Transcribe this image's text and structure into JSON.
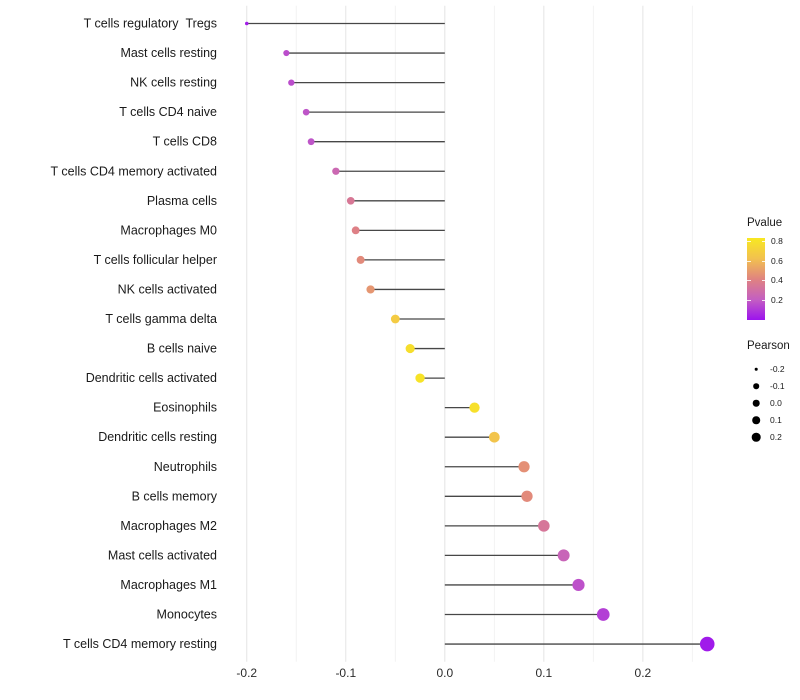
{
  "chart_data": {
    "type": "lollipop",
    "title": "",
    "xlabel": "",
    "ylabel": "",
    "x_tick_labels": [
      "-0.2",
      "-0.1",
      "0.0",
      "0.1",
      "0.2"
    ],
    "x_tick_values": [
      -0.2,
      -0.1,
      0.0,
      0.1,
      0.2
    ],
    "x_minor_tick_values": [
      -0.15,
      -0.05,
      0.05,
      0.15,
      0.25
    ],
    "x_range": [
      -0.225,
      0.289
    ],
    "grid": "on",
    "rows": [
      {
        "label": "T cells regulatory  Tregs",
        "pearson": -0.2,
        "pvalue": 0.03
      },
      {
        "label": "Mast cells resting",
        "pearson": -0.16,
        "pvalue": 0.16
      },
      {
        "label": "NK cells resting",
        "pearson": -0.155,
        "pvalue": 0.16
      },
      {
        "label": "T cells CD4 naive",
        "pearson": -0.14,
        "pvalue": 0.18
      },
      {
        "label": "T cells CD8",
        "pearson": -0.135,
        "pvalue": 0.18
      },
      {
        "label": "T cells CD4 memory activated",
        "pearson": -0.11,
        "pvalue": 0.26
      },
      {
        "label": "Plasma cells",
        "pearson": -0.095,
        "pvalue": 0.35
      },
      {
        "label": "Macrophages M0",
        "pearson": -0.09,
        "pvalue": 0.4
      },
      {
        "label": "T cells follicular helper",
        "pearson": -0.085,
        "pvalue": 0.44
      },
      {
        "label": "NK cells activated",
        "pearson": -0.075,
        "pvalue": 0.48
      },
      {
        "label": "T cells gamma delta",
        "pearson": -0.05,
        "pvalue": 0.68
      },
      {
        "label": "B cells naive",
        "pearson": -0.035,
        "pvalue": 0.78
      },
      {
        "label": "Dendritic cells activated",
        "pearson": -0.025,
        "pvalue": 0.81
      },
      {
        "label": "Eosinophils",
        "pearson": 0.03,
        "pvalue": 0.79
      },
      {
        "label": "Dendritic cells resting",
        "pearson": 0.05,
        "pvalue": 0.64
      },
      {
        "label": "Neutrophils",
        "pearson": 0.08,
        "pvalue": 0.46
      },
      {
        "label": "B cells memory",
        "pearson": 0.083,
        "pvalue": 0.44
      },
      {
        "label": "Macrophages M2",
        "pearson": 0.1,
        "pvalue": 0.34
      },
      {
        "label": "Mast cells activated",
        "pearson": 0.12,
        "pvalue": 0.24
      },
      {
        "label": "Macrophages M1",
        "pearson": 0.135,
        "pvalue": 0.17
      },
      {
        "label": "Monocytes",
        "pearson": 0.16,
        "pvalue": 0.12
      },
      {
        "label": "T cells CD4 memory resting",
        "pearson": 0.265,
        "pvalue": 0.02
      }
    ]
  },
  "legends": {
    "pvalue": {
      "title": "Pvalue",
      "tick_labels": [
        "0.8",
        "0.6",
        "0.4",
        "0.2"
      ],
      "tick_values": [
        0.8,
        0.6,
        0.4,
        0.2
      ],
      "bar_range": [
        0,
        0.835
      ],
      "gradient_stops_low_to_high": [
        "#9C13EE",
        "#C45FC2",
        "#E08380",
        "#F2C14F",
        "#F8E821"
      ]
    },
    "pearson": {
      "title": "Pearson",
      "items": [
        {
          "label": "-0.2",
          "value": -0.2
        },
        {
          "label": "-0.1",
          "value": -0.1
        },
        {
          "label": "0.0",
          "value": 0.0
        },
        {
          "label": "0.1",
          "value": 0.1
        },
        {
          "label": "0.2",
          "value": 0.2
        }
      ]
    }
  },
  "colors": {
    "background": "#ffffff",
    "stem": "#474747",
    "axis_text": "#2b2b2b",
    "row_label_text": "#1a1a1a",
    "grid_major": "#e4e4e4",
    "grid_minor": "#f1f1f1",
    "legend_dot": "#000000"
  }
}
